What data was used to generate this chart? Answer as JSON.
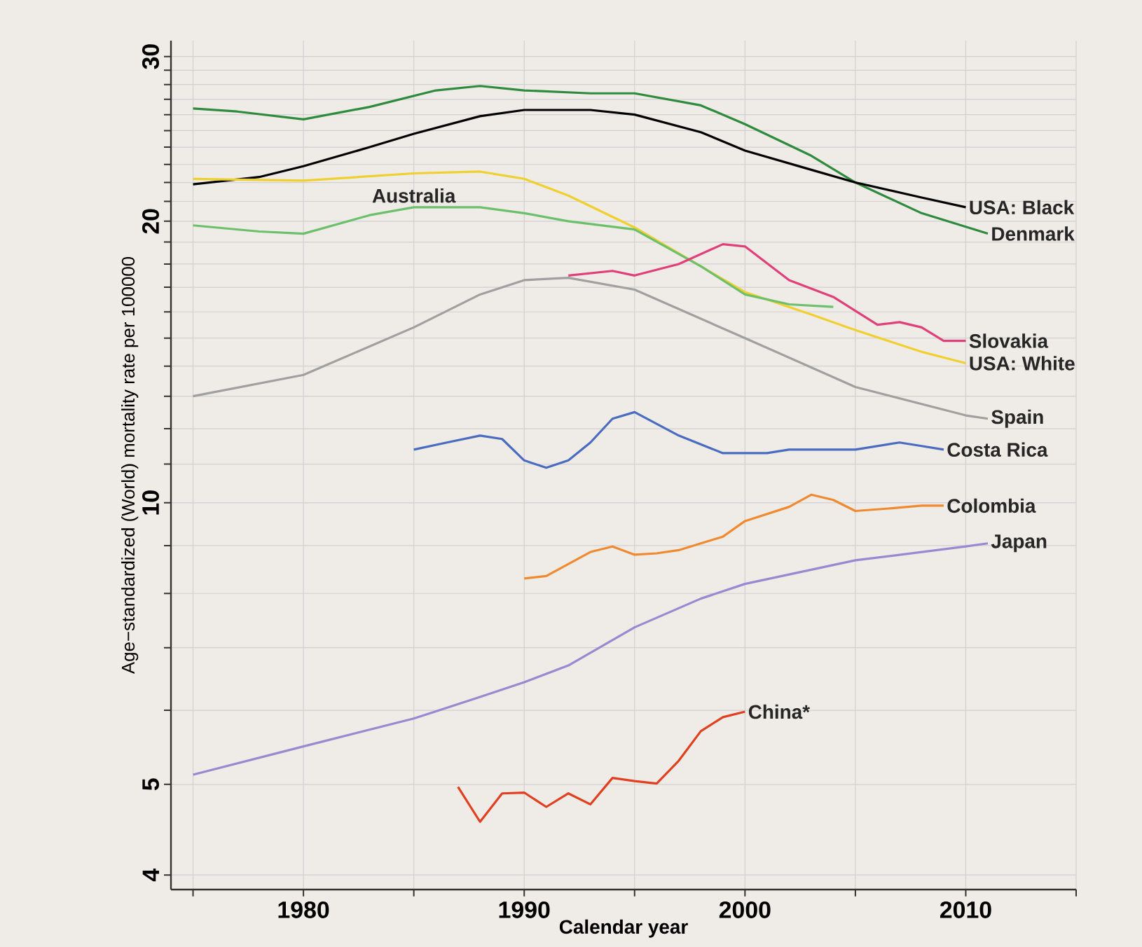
{
  "chart_data": {
    "type": "line",
    "xlabel": "Calendar year",
    "ylabel": "Age−standardized (World) mortality rate per 100000",
    "log": "y",
    "grid": true,
    "legend": false,
    "marker": "none",
    "line_style": "solid",
    "xlim": [
      1974,
      2015
    ],
    "xticks": [
      {
        "value": 1975,
        "label": null
      },
      1980,
      {
        "value": 1985,
        "label": null
      },
      1990,
      {
        "value": 1995,
        "label": null
      },
      2000,
      {
        "value": 2005,
        "label": null
      },
      2010,
      {
        "value": 2015,
        "label": null
      }
    ],
    "ylim": [
      3.86,
      31.2
    ],
    "yticks": [
      4,
      5,
      {
        "value": 6,
        "label": null
      },
      {
        "value": 7,
        "label": null
      },
      {
        "value": 8,
        "label": null
      },
      {
        "value": 9,
        "label": null
      },
      10,
      {
        "value": 11,
        "label": null
      },
      {
        "value": 12,
        "label": null
      },
      {
        "value": 13,
        "label": null
      },
      {
        "value": 14,
        "label": null
      },
      {
        "value": 15,
        "label": null
      },
      {
        "value": 16,
        "label": null
      },
      {
        "value": 17,
        "label": null
      },
      {
        "value": 18,
        "label": null
      },
      {
        "value": 19,
        "label": null
      },
      20,
      {
        "value": 21,
        "label": null
      },
      {
        "value": 22,
        "label": null
      },
      {
        "value": 23,
        "label": null
      },
      {
        "value": 24,
        "label": null
      },
      {
        "value": 25,
        "label": null
      },
      {
        "value": 26,
        "label": null
      },
      {
        "value": 27,
        "label": null
      },
      {
        "value": 28,
        "label": null
      },
      {
        "value": 29,
        "label": null
      },
      30
    ],
    "series": [
      {
        "name": "Denmark",
        "color": "#2e8b3e",
        "x": [
          1975,
          1977,
          1980,
          1983,
          1986,
          1988,
          1990,
          1993,
          1995,
          1998,
          2000,
          2003,
          2005,
          2008,
          2011
        ],
        "values": [
          26.4,
          26.2,
          25.7,
          26.5,
          27.6,
          27.9,
          27.6,
          27.4,
          27.4,
          26.6,
          25.4,
          23.5,
          22.0,
          20.4,
          19.4
        ]
      },
      {
        "name": "USA: Black",
        "color": "#000000",
        "x": [
          1975,
          1978,
          1980,
          1983,
          1985,
          1988,
          1990,
          1993,
          1995,
          1998,
          2000,
          2003,
          2005,
          2008,
          2010
        ],
        "values": [
          21.9,
          22.3,
          22.9,
          24.0,
          24.8,
          25.9,
          26.3,
          26.3,
          26.0,
          24.9,
          23.8,
          22.7,
          22.0,
          21.2,
          20.7
        ]
      },
      {
        "name": "USA: White",
        "color": "#f0d030",
        "x": [
          1975,
          1980,
          1985,
          1988,
          1990,
          1992,
          1995,
          1998,
          2000,
          2003,
          2005,
          2008,
          2010
        ],
        "values": [
          22.2,
          22.1,
          22.5,
          22.6,
          22.2,
          21.3,
          19.7,
          17.9,
          16.8,
          15.9,
          15.3,
          14.5,
          14.1
        ]
      },
      {
        "name": "Australia",
        "color": "#6cc06c",
        "x": [
          1975,
          1978,
          1980,
          1983,
          1985,
          1988,
          1990,
          1992,
          1995,
          1998,
          2000,
          2002,
          2004
        ],
        "values": [
          19.8,
          19.5,
          19.4,
          20.3,
          20.7,
          20.7,
          20.4,
          20.0,
          19.6,
          17.9,
          16.7,
          16.3,
          16.2
        ]
      },
      {
        "name": "Slovakia",
        "color": "#e0407a",
        "x": [
          1992,
          1994,
          1995,
          1997,
          1999,
          2000,
          2002,
          2004,
          2006,
          2007,
          2008,
          2009,
          2010
        ],
        "values": [
          17.5,
          17.7,
          17.5,
          18.0,
          18.9,
          18.8,
          17.3,
          16.6,
          15.5,
          15.6,
          15.4,
          14.9,
          14.9
        ]
      },
      {
        "name": "Spain",
        "color": "#a0a0a0",
        "x": [
          1975,
          1980,
          1985,
          1988,
          1990,
          1992,
          1995,
          2000,
          2005,
          2010,
          2011
        ],
        "values": [
          13.0,
          13.7,
          15.4,
          16.7,
          17.3,
          17.4,
          16.9,
          15.0,
          13.3,
          12.4,
          12.3
        ]
      },
      {
        "name": "Costa Rica",
        "color": "#4a6cc0",
        "x": [
          1985,
          1986.5,
          1988,
          1989,
          1990,
          1991,
          1992,
          1993,
          1994,
          1995,
          1997,
          1999,
          2001,
          2002,
          2005,
          2007,
          2008,
          2009
        ],
        "values": [
          11.4,
          11.6,
          11.8,
          11.7,
          11.1,
          10.9,
          11.1,
          11.6,
          12.3,
          12.5,
          11.8,
          11.3,
          11.3,
          11.4,
          11.4,
          11.6,
          11.5,
          11.4
        ]
      },
      {
        "name": "Colombia",
        "color": "#f08a30",
        "x": [
          1990,
          1991,
          1993,
          1994,
          1995,
          1996,
          1997,
          1998,
          1999,
          2000,
          2002,
          2003,
          2004,
          2005,
          2006.5,
          2008,
          2009
        ],
        "values": [
          8.3,
          8.35,
          8.86,
          8.98,
          8.8,
          8.83,
          8.9,
          9.05,
          9.2,
          9.56,
          9.9,
          10.2,
          10.07,
          9.8,
          9.86,
          9.93,
          9.93
        ]
      },
      {
        "name": "Japan",
        "color": "#9a88d0",
        "x": [
          1975,
          1980,
          1985,
          1988,
          1990,
          1992,
          1995,
          1998,
          2000,
          2005,
          2010,
          2011
        ],
        "values": [
          5.12,
          5.49,
          5.88,
          6.2,
          6.43,
          6.7,
          7.36,
          7.9,
          8.19,
          8.68,
          8.98,
          9.05
        ]
      },
      {
        "name": "China*",
        "color": "#e04020",
        "x": [
          1987,
          1988,
          1989,
          1990,
          1991,
          1992,
          1993,
          1994,
          1995,
          1996,
          1997,
          1998,
          1999,
          2000
        ],
        "values": [
          4.97,
          4.56,
          4.89,
          4.9,
          4.73,
          4.89,
          4.76,
          5.08,
          5.04,
          5.01,
          5.3,
          5.7,
          5.9,
          5.98
        ]
      }
    ]
  }
}
